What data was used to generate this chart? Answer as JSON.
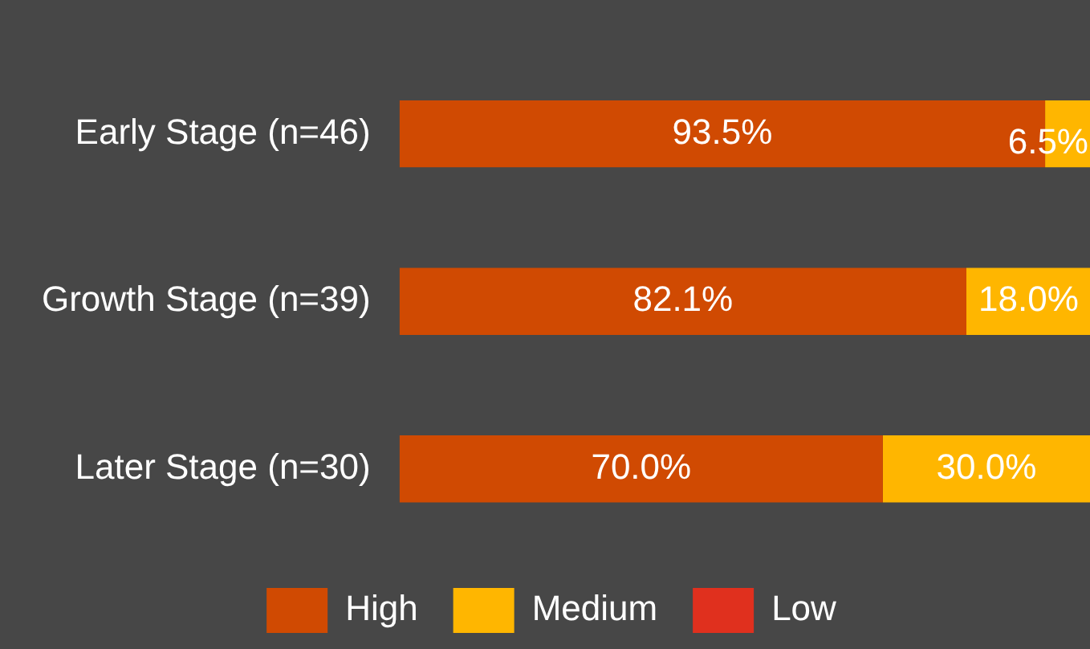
{
  "chart_data": {
    "type": "bar",
    "orientation": "horizontal",
    "stacked": true,
    "categories": [
      "Early Stage (n=46)",
      "Growth Stage (n=39)",
      "Later Stage (n=30)"
    ],
    "series": [
      {
        "name": "High",
        "color": "#d04a02",
        "values": [
          93.5,
          82.1,
          70.0
        ],
        "value_labels": [
          "93.5%",
          "82.1%",
          "70.0%"
        ]
      },
      {
        "name": "Medium",
        "color": "#ffb600",
        "values": [
          6.5,
          18.0,
          30.0
        ],
        "value_labels": [
          "6.5%",
          "18.0%",
          "30.0%"
        ]
      },
      {
        "name": "Low",
        "color": "#e0301e",
        "values": [
          0,
          0,
          0
        ],
        "value_labels": [
          null,
          null,
          null
        ]
      }
    ],
    "xlim": [
      0,
      100
    ],
    "tick_labels": "y",
    "grid": false,
    "legend": "bottom"
  }
}
